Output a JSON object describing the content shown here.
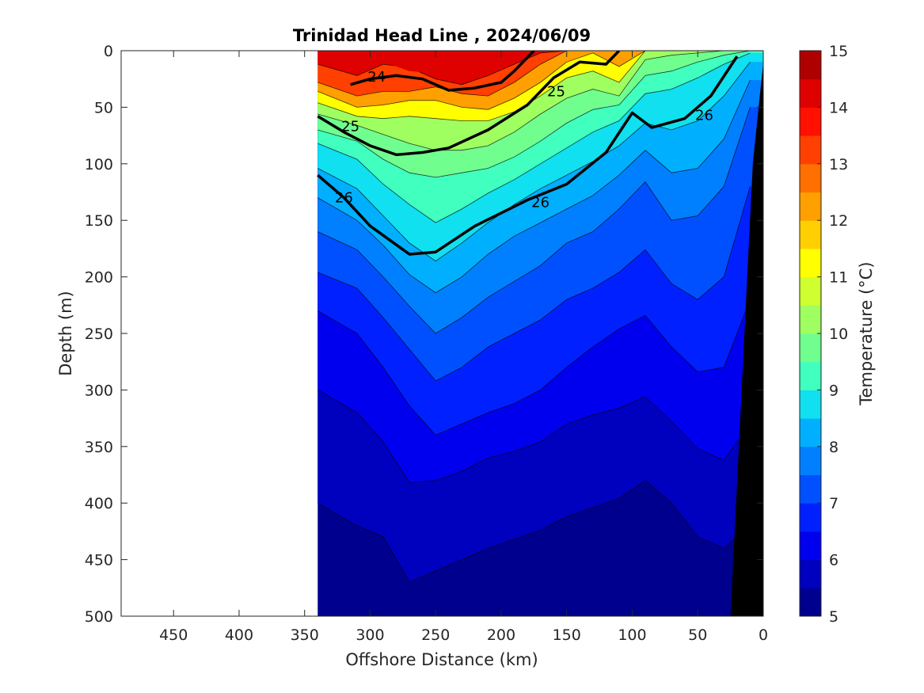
{
  "chart_data": {
    "type": "heatmap",
    "title": "Trinidad Head Line , 2024/06/09",
    "xlabel": "Offshore Distance (km)",
    "ylabel": "Depth (m)",
    "xlim": [
      490,
      0
    ],
    "ylim": [
      0,
      500
    ],
    "x_reversed": true,
    "y_reversed": true,
    "xticks": [
      450,
      400,
      350,
      300,
      250,
      200,
      150,
      100,
      50,
      0
    ],
    "yticks": [
      0,
      50,
      100,
      150,
      200,
      250,
      300,
      350,
      400,
      450,
      500
    ],
    "colorbar": {
      "label": "Temperature (°C)",
      "min": 5,
      "max": 15,
      "ticks": [
        5,
        6,
        7,
        8,
        9,
        10,
        11,
        12,
        13,
        14,
        15
      ],
      "colors": [
        "#00008f",
        "#0000bf",
        "#0000ef",
        "#0020ff",
        "#0050ff",
        "#0080ff",
        "#00b0ff",
        "#10e0ef",
        "#40ffbf",
        "#70ff8f",
        "#9fff60",
        "#cfff30",
        "#ffff00",
        "#ffcf00",
        "#ff9f00",
        "#ff7000",
        "#ff4000",
        "#ff1000",
        "#df0000",
        "#af0000"
      ]
    },
    "data_extent_km": [
      0,
      340
    ],
    "temperature_profile": {
      "x_km": [
        340,
        310,
        290,
        270,
        250,
        230,
        210,
        190,
        170,
        150,
        130,
        110,
        90,
        70,
        50,
        30,
        10
      ],
      "isotherm_depths_m": [
        {
          "t": 14.0,
          "depths": [
            12,
            22,
            12,
            15,
            25,
            30,
            22,
            12,
            2,
            0,
            0,
            0,
            0,
            0,
            0,
            0,
            0
          ]
        },
        {
          "t": 13.0,
          "depths": [
            28,
            40,
            36,
            36,
            32,
            38,
            40,
            28,
            12,
            0,
            0,
            0,
            0,
            0,
            0,
            0,
            0
          ]
        },
        {
          "t": 12.0,
          "depths": [
            36,
            50,
            48,
            44,
            44,
            50,
            52,
            42,
            28,
            10,
            2,
            14,
            0,
            0,
            0,
            0,
            0
          ]
        },
        {
          "t": 11.0,
          "depths": [
            46,
            58,
            60,
            58,
            60,
            62,
            62,
            54,
            40,
            24,
            18,
            28,
            0,
            0,
            0,
            0,
            0
          ]
        },
        {
          "t": 10.0,
          "depths": [
            56,
            66,
            74,
            82,
            88,
            88,
            84,
            72,
            56,
            42,
            34,
            40,
            8,
            4,
            2,
            0,
            0
          ]
        },
        {
          "t": 9.5,
          "depths": [
            70,
            80,
            96,
            108,
            112,
            108,
            104,
            94,
            80,
            64,
            52,
            48,
            22,
            18,
            10,
            4,
            0
          ]
        },
        {
          "t": 9.0,
          "depths": [
            82,
            96,
            118,
            136,
            152,
            140,
            126,
            114,
            100,
            86,
            72,
            62,
            38,
            34,
            24,
            12,
            2
          ]
        },
        {
          "t": 8.5,
          "depths": [
            104,
            122,
            146,
            170,
            186,
            170,
            152,
            136,
            122,
            110,
            98,
            84,
            64,
            70,
            62,
            40,
            10
          ]
        },
        {
          "t": 8.0,
          "depths": [
            130,
            150,
            172,
            198,
            214,
            200,
            180,
            164,
            152,
            140,
            128,
            110,
            88,
            108,
            104,
            78,
            26
          ]
        },
        {
          "t": 7.5,
          "depths": [
            160,
            176,
            200,
            226,
            250,
            236,
            218,
            204,
            190,
            170,
            160,
            140,
            116,
            150,
            146,
            120,
            50
          ]
        },
        {
          "t": 7.0,
          "depths": [
            196,
            210,
            236,
            264,
            292,
            280,
            262,
            250,
            238,
            220,
            210,
            196,
            176,
            206,
            220,
            200,
            120
          ]
        },
        {
          "t": 6.5,
          "depths": [
            230,
            250,
            280,
            314,
            340,
            330,
            320,
            312,
            300,
            280,
            262,
            246,
            234,
            262,
            284,
            280,
            220
          ]
        },
        {
          "t": 6.0,
          "depths": [
            300,
            320,
            346,
            382,
            380,
            372,
            360,
            354,
            346,
            330,
            322,
            316,
            306,
            328,
            352,
            362,
            330
          ]
        },
        {
          "t": 5.5,
          "depths": [
            400,
            420,
            430,
            470,
            460,
            450,
            440,
            432,
            424,
            412,
            404,
            396,
            380,
            400,
            430,
            440,
            420
          ]
        }
      ]
    },
    "density_contours": {
      "labeled": [
        {
          "label": "24",
          "depths": [
            30,
            25,
            22,
            25,
            35,
            33,
            28,
            18,
            6,
            0
          ]
        },
        {
          "label": "25",
          "depths": [
            58,
            72,
            84,
            92,
            90,
            86,
            70,
            48,
            24,
            10,
            12,
            0
          ]
        },
        {
          "label": "26",
          "depths": [
            110,
            130,
            155,
            180,
            178,
            155,
            132,
            118,
            90,
            55,
            68,
            60,
            40,
            5
          ]
        }
      ]
    }
  }
}
